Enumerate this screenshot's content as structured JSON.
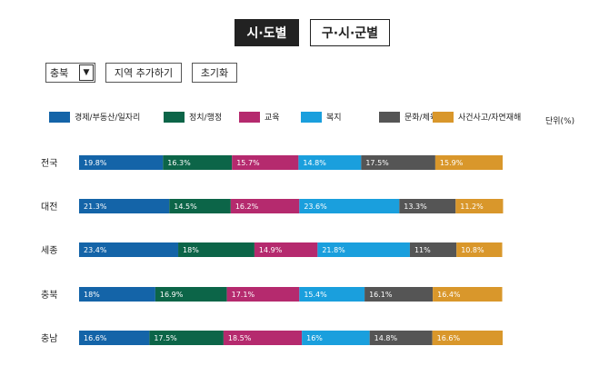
{
  "tabs": {
    "sido": "시·도별",
    "gusi": "구·시·군별"
  },
  "controls": {
    "region": "충북",
    "add_region": "지역 추가하기",
    "reset": "초기화"
  },
  "unit": "단위(%)",
  "colors": [
    "#1464a8",
    "#0c6548",
    "#b52a6e",
    "#1a9fdd",
    "#555555",
    "#d9972b"
  ],
  "chart_data": {
    "type": "bar",
    "orientation": "horizontal",
    "stacked": true,
    "legend_position": "top",
    "categories": [
      "전국",
      "대전",
      "세종",
      "충북",
      "충남"
    ],
    "series": [
      {
        "name": "경제/부동산/일자리",
        "values": [
          19.8,
          21.3,
          23.4,
          18,
          16.6
        ],
        "labels": [
          "19.8%",
          "21.3%",
          "23.4%",
          "18%",
          "16.6%"
        ]
      },
      {
        "name": "정치/행정",
        "values": [
          16.3,
          14.5,
          18,
          16.9,
          17.5
        ],
        "labels": [
          "16.3%",
          "14.5%",
          "18%",
          "16.9%",
          "17.5%"
        ]
      },
      {
        "name": "교육",
        "values": [
          15.7,
          16.2,
          14.9,
          17.1,
          18.5
        ],
        "labels": [
          "15.7%",
          "16.2%",
          "14.9%",
          "17.1%",
          "18.5%"
        ]
      },
      {
        "name": "복지",
        "values": [
          14.8,
          23.6,
          21.8,
          15.4,
          16
        ],
        "labels": [
          "14.8%",
          "23.6%",
          "21.8%",
          "15.4%",
          "16%"
        ]
      },
      {
        "name": "문화/체육",
        "values": [
          17.5,
          13.3,
          11,
          16.1,
          14.8
        ],
        "labels": [
          "17.5%",
          "13.3%",
          "11%",
          "16.1%",
          "14.8%"
        ]
      },
      {
        "name": "사건사고/자연재해",
        "values": [
          15.9,
          11.2,
          10.8,
          16.4,
          16.6
        ],
        "labels": [
          "15.9%",
          "11.2%",
          "10.8%",
          "16.4%",
          "16.6%"
        ]
      }
    ]
  }
}
